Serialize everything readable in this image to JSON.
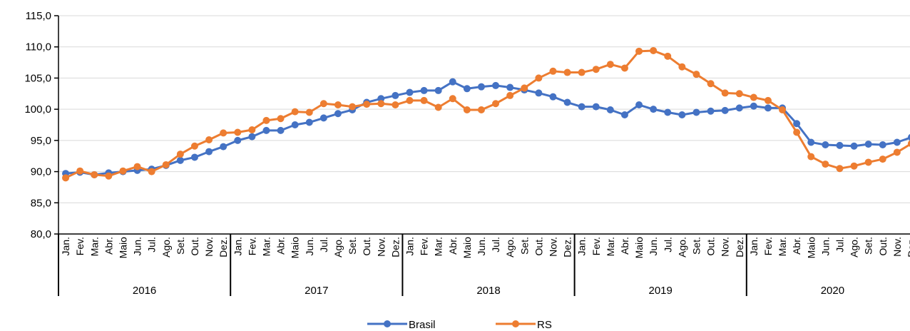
{
  "chart_data": {
    "type": "line",
    "categories": [
      "Jan.",
      "Fev.",
      "Mar.",
      "Abr.",
      "Maio",
      "Jun.",
      "Jul.",
      "Ago.",
      "Set.",
      "Out.",
      "Nov.",
      "Dez.",
      "Jan.",
      "Fev.",
      "Mar.",
      "Abr.",
      "Maio",
      "Jun.",
      "Jul.",
      "Ago.",
      "Set.",
      "Out.",
      "Nov.",
      "Dez.",
      "Jan.",
      "Fev.",
      "Mar.",
      "Abr.",
      "Maio",
      "Jun.",
      "Jul.",
      "Ago.",
      "Set.",
      "Out.",
      "Nov.",
      "Dez.",
      "Jan.",
      "Fev.",
      "Mar.",
      "Abr.",
      "Maio",
      "Jun.",
      "Jul.",
      "Ago.",
      "Set.",
      "Out.",
      "Nov.",
      "Dez.",
      "Jan.",
      "Fev.",
      "Mar.",
      "Abr.",
      "Maio",
      "Jun.",
      "Jul.",
      "Ago.",
      "Set.",
      "Out.",
      "Nov.",
      "Dez."
    ],
    "year_labels": [
      "2016",
      "2017",
      "2018",
      "2019",
      "2020"
    ],
    "series": [
      {
        "name": "Brasil",
        "color": "#4472c4",
        "values": [
          89.7,
          89.9,
          89.5,
          89.8,
          90.0,
          90.2,
          90.4,
          91.0,
          91.8,
          92.3,
          93.2,
          94.0,
          95.0,
          95.6,
          96.6,
          96.6,
          97.5,
          97.9,
          98.6,
          99.3,
          99.9,
          101.1,
          101.7,
          102.2,
          102.7,
          103.0,
          103.0,
          104.4,
          103.3,
          103.6,
          103.8,
          103.5,
          103.1,
          102.6,
          102.0,
          101.1,
          100.4,
          100.4,
          99.9,
          99.1,
          100.7,
          100.0,
          99.5,
          99.1,
          99.5,
          99.7,
          99.8,
          100.2,
          100.5,
          100.2,
          100.2,
          97.7,
          94.7,
          94.3,
          94.2,
          94.1,
          94.4,
          94.3,
          94.7,
          95.5
        ]
      },
      {
        "name": "RS",
        "color": "#ed7d31",
        "values": [
          89.0,
          90.1,
          89.5,
          89.3,
          90.1,
          90.8,
          90.0,
          91.1,
          92.8,
          94.1,
          95.1,
          96.2,
          96.3,
          96.7,
          98.2,
          98.5,
          99.6,
          99.5,
          100.9,
          100.7,
          100.4,
          100.8,
          100.9,
          100.7,
          101.4,
          101.4,
          100.3,
          101.7,
          99.9,
          99.9,
          100.9,
          102.2,
          103.4,
          105.0,
          106.1,
          105.9,
          105.9,
          106.4,
          107.2,
          106.6,
          109.3,
          109.4,
          108.5,
          106.8,
          105.6,
          104.1,
          102.6,
          102.5,
          101.9,
          101.4,
          99.9,
          96.3,
          92.4,
          91.2,
          90.5,
          90.9,
          91.5,
          92.0,
          93.1,
          94.5
        ]
      }
    ],
    "ylim": [
      80,
      115
    ],
    "yticks": [
      {
        "value": 80,
        "label": "80,0"
      },
      {
        "value": 85,
        "label": "85,0"
      },
      {
        "value": 90,
        "label": "90,0"
      },
      {
        "value": 95,
        "label": "95,0"
      },
      {
        "value": 100,
        "label": "100,0"
      },
      {
        "value": 105,
        "label": "105,0"
      },
      {
        "value": 110,
        "label": "110,0"
      },
      {
        "value": 115,
        "label": "115,0"
      }
    ],
    "grid": true,
    "legend": "bottom"
  }
}
